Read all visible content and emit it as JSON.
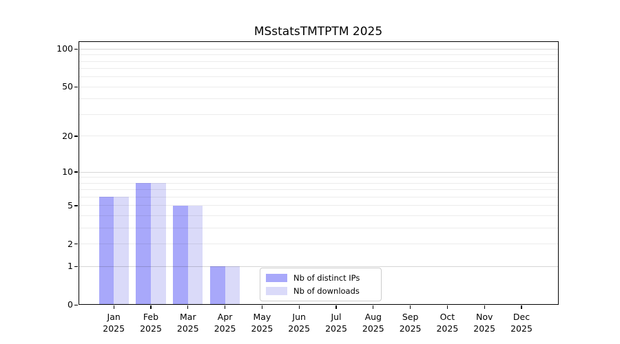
{
  "title": "MSstatsTMTPTM 2025",
  "colors": {
    "distinct_ips_bar": "#a8a8fa",
    "downloads_bar": "#dadaf9",
    "axis": "#000000",
    "legend_border": "#cccccc"
  },
  "chart_data": {
    "type": "bar",
    "title": "MSstatsTMTPTM 2025",
    "xlabel": "",
    "ylabel": "",
    "months": [
      "Jan",
      "Feb",
      "Mar",
      "Apr",
      "May",
      "Jun",
      "Jul",
      "Aug",
      "Sep",
      "Oct",
      "Nov",
      "Dec"
    ],
    "year_label": "2025",
    "series": [
      {
        "name": "Nb of distinct IPs",
        "color": "#a8a8fa",
        "values": [
          6,
          8,
          5,
          1,
          0,
          0,
          0,
          0,
          0,
          0,
          0,
          0
        ]
      },
      {
        "name": "Nb of downloads",
        "color": "#dadaf9",
        "values": [
          6,
          8,
          5,
          1,
          0,
          0,
          0,
          0,
          0,
          0,
          0,
          0
        ]
      }
    ],
    "yscale": "log1p",
    "yticks": [
      0,
      1,
      2,
      5,
      10,
      20,
      50,
      100
    ],
    "ytick_major": [
      1,
      10,
      100
    ],
    "ytick_minor_grid": [
      2,
      3,
      4,
      5,
      6,
      7,
      8,
      9,
      20,
      30,
      40,
      50,
      60,
      70,
      80,
      90
    ],
    "ylim": [
      0,
      116
    ],
    "grid": "horizontal, minor + major",
    "legend_position": "bottom-center-inside"
  }
}
